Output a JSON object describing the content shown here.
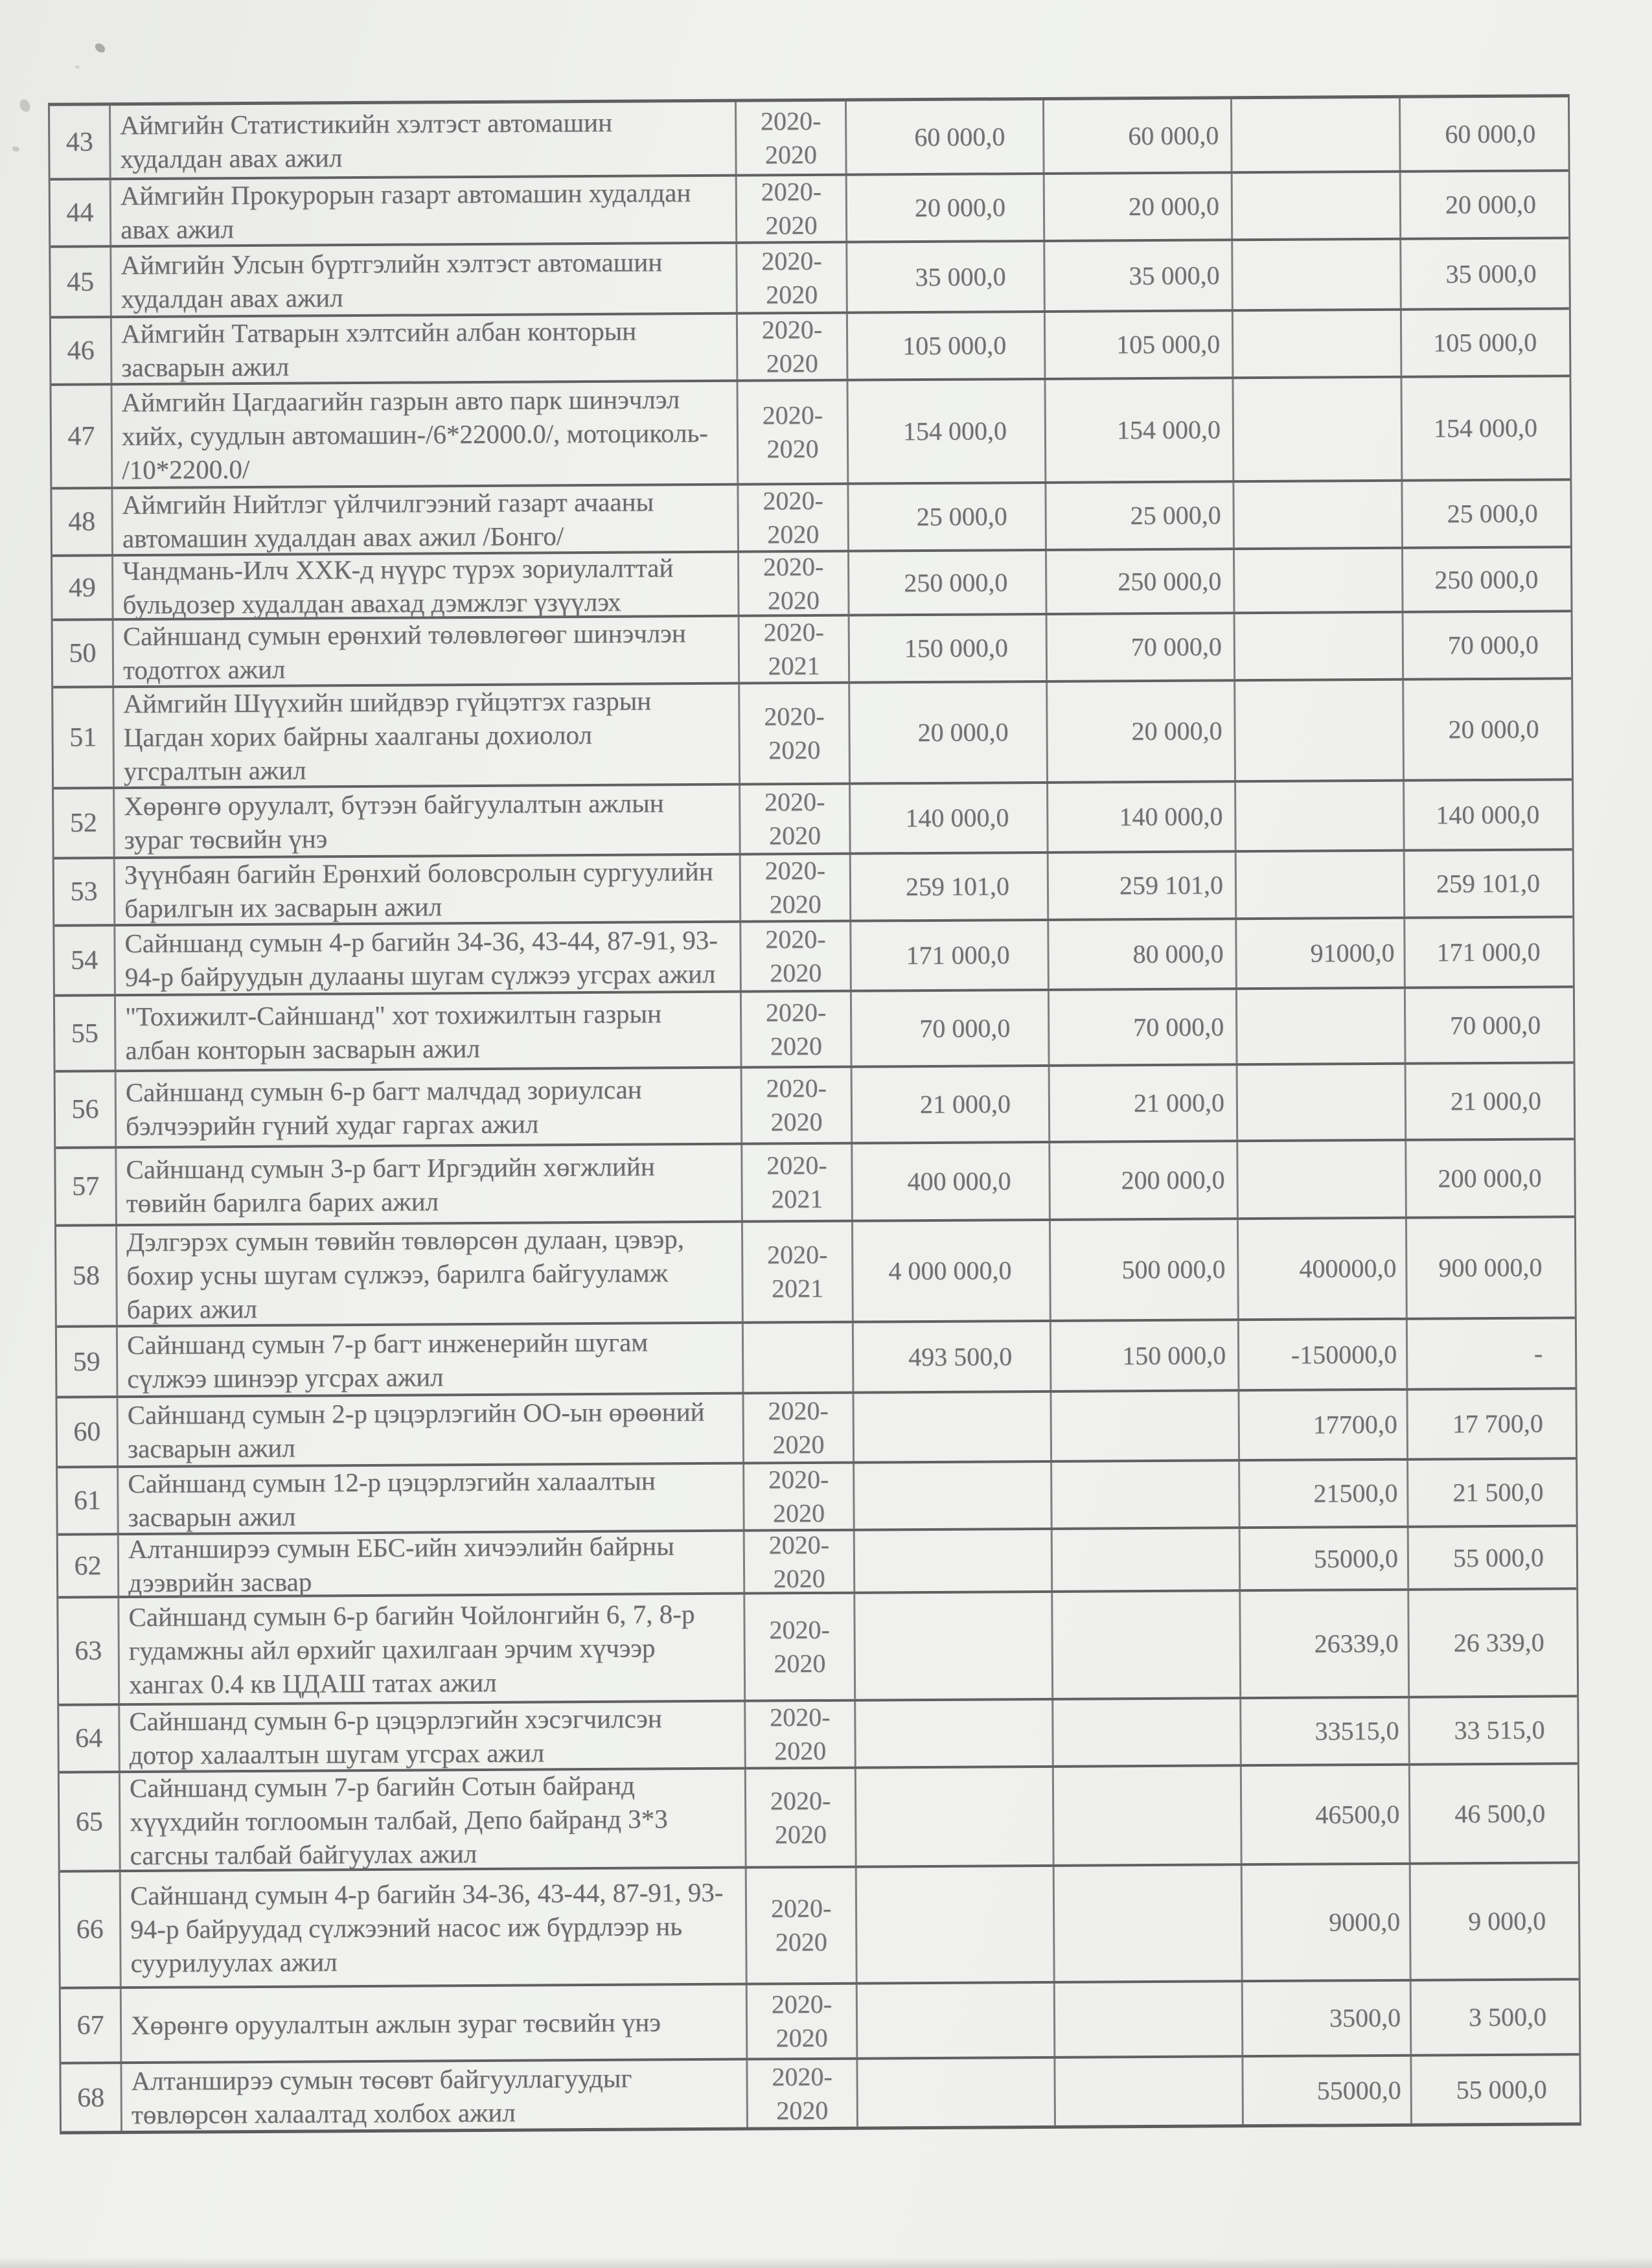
{
  "document": {
    "kind": "scanned budget table page (continuation, rows 43-68)",
    "language": "Mongolian"
  },
  "table": {
    "rows": [
      {
        "num": "43",
        "desc": "Аймгийн Статистикийн хэлтэст автомашин\nхудалдан авах ажил",
        "year": "2020-2020",
        "v1": "60 000,0",
        "v2": "60 000,0",
        "v3": "",
        "v4": "60 000,0"
      },
      {
        "num": "44",
        "desc": "Аймгийн Прокурорын газарт автомашин худалдан\nавах ажил",
        "year": "2020-2020",
        "v1": "20 000,0",
        "v2": "20 000,0",
        "v3": "",
        "v4": "20 000,0"
      },
      {
        "num": "45",
        "desc": "Аймгийн Улсын бүртгэлийн хэлтэст автомашин\nхудалдан авах ажил",
        "year": "2020-2020",
        "v1": "35 000,0",
        "v2": "35 000,0",
        "v3": "",
        "v4": "35 000,0"
      },
      {
        "num": "46",
        "desc": "Аймгийн Татварын хэлтсийн албан конторын\nзасварын ажил",
        "year": "2020-2020",
        "v1": "105 000,0",
        "v2": "105 000,0",
        "v3": "",
        "v4": "105 000,0"
      },
      {
        "num": "47",
        "desc": "Аймгийн Цагдаагийн газрын авто парк шинэчлэл\nхийх, суудлын автомашин-/6*22000.0/, мотоциколь-\n/10*2200.0/",
        "year": "2020-2020",
        "v1": "154 000,0",
        "v2": "154 000,0",
        "v3": "",
        "v4": "154 000,0"
      },
      {
        "num": "48",
        "desc": "Аймгийн Нийтлэг үйлчилгээний газарт ачааны\nавтомашин худалдан авах ажил /Бонго/",
        "year": "2020-2020",
        "v1": "25 000,0",
        "v2": "25 000,0",
        "v3": "",
        "v4": "25 000,0"
      },
      {
        "num": "49",
        "desc": "Чандмань-Илч ХХК-д нүүрс түрэх зориулалттай\nбульдозер худалдан авахад дэмжлэг үзүүлэх",
        "year": "2020-2020",
        "v1": "250 000,0",
        "v2": "250 000,0",
        "v3": "",
        "v4": "250 000,0"
      },
      {
        "num": "50",
        "desc": "Сайншанд сумын ерөнхий төлөвлөгөөг шинэчлэн\nтодотгох ажил",
        "year": "2020-2021",
        "v1": "150 000,0",
        "v2": "70 000,0",
        "v3": "",
        "v4": "70 000,0"
      },
      {
        "num": "51",
        "desc": "Аймгийн Шүүхийн шийдвэр гүйцэтгэх газрын\nЦагдан хорих байрны хаалганы дохиолол\nугсралтын ажил",
        "year": "2020-2020",
        "v1": "20 000,0",
        "v2": "20 000,0",
        "v3": "",
        "v4": "20 000,0"
      },
      {
        "num": "52",
        "desc": "Хөрөнгө оруулалт, бүтээн байгуулалтын ажлын\nзураг төсвийн үнэ",
        "year": "2020-2020",
        "v1": "140 000,0",
        "v2": "140 000,0",
        "v3": "",
        "v4": "140 000,0"
      },
      {
        "num": "53",
        "desc": "Зүүнбаян багийн Ерөнхий боловсролын сургуулийн\nбарилгын их засварын ажил",
        "year": "2020-2020",
        "v1": "259 101,0",
        "v2": "259 101,0",
        "v3": "",
        "v4": "259 101,0"
      },
      {
        "num": "54",
        "desc": "Сайншанд сумын 4-р багийн 34-36, 43-44, 87-91, 93-\n94-р байруудын дулааны шугам сүлжээ угсрах ажил",
        "year": "2020-2020",
        "v1": "171 000,0",
        "v2": "80 000,0",
        "v3": "91000,0",
        "v4": "171 000,0"
      },
      {
        "num": "55",
        "desc": "\"Тохижилт-Сайншанд\" хот тохижилтын газрын\nалбан конторын засварын ажил",
        "year": "2020-2020",
        "v1": "70 000,0",
        "v2": "70 000,0",
        "v3": "",
        "v4": "70 000,0"
      },
      {
        "num": "56",
        "desc": "Сайншанд сумын 6-р багт малчдад зориулсан\nбэлчээрийн гүний худаг гаргах ажил",
        "year": "2020-2020",
        "v1": "21 000,0",
        "v2": "21 000,0",
        "v3": "",
        "v4": "21 000,0"
      },
      {
        "num": "57",
        "desc": "Сайншанд сумын 3-р багт Иргэдийн хөгжлийн\nтөвийн барилга барих ажил",
        "year": "2020-2021",
        "v1": "400 000,0",
        "v2": "200 000,0",
        "v3": "",
        "v4": "200 000,0"
      },
      {
        "num": "58",
        "desc": "Дэлгэрэх сумын төвийн төвлөрсөн дулаан, цэвэр,\nбохир усны шугам сүлжээ, барилга байгууламж\nбарих ажил",
        "year": "2020-2021",
        "v1": "4 000 000,0",
        "v2": "500 000,0",
        "v3": "400000,0",
        "v4": "900 000,0"
      },
      {
        "num": "59",
        "desc": "Сайншанд сумын 7-р багт инженерийн шугам\nсүлжээ шинээр угсрах ажил",
        "year": "",
        "v1": "493 500,0",
        "v2": "150 000,0",
        "v3": "-150000,0",
        "v4": "-"
      },
      {
        "num": "60",
        "desc": "Сайншанд сумын 2-р цэцэрлэгийн ОО-ын өрөөний\nзасварын ажил",
        "year": "2020-2020",
        "v1": "",
        "v2": "",
        "v3": "17700,0",
        "v4": "17 700,0"
      },
      {
        "num": "61",
        "desc": "Сайншанд сумын 12-р цэцэрлэгийн халаалтын\nзасварын ажил",
        "year": "2020-2020",
        "v1": "",
        "v2": "",
        "v3": "21500,0",
        "v4": "21 500,0"
      },
      {
        "num": "62",
        "desc": "Алтанширээ сумын ЕБС-ийн хичээлийн байрны\nдээврийн засвар",
        "year": "2020-2020",
        "v1": "",
        "v2": "",
        "v3": "55000,0",
        "v4": "55 000,0"
      },
      {
        "num": "63",
        "desc": "Сайншанд сумын 6-р багийн Чойлонгийн 6, 7, 8-р\nгудамжны айл өрхийг цахилгаан эрчим хүчээр\nхангах 0.4 кв ЦДАШ татах ажил",
        "year": "2020-2020",
        "v1": "",
        "v2": "",
        "v3": "26339,0",
        "v4": "26 339,0"
      },
      {
        "num": "64",
        "desc": "Сайншанд сумын 6-р цэцэрлэгийн хэсэгчилсэн\nдотор халаалтын шугам угсрах ажил",
        "year": "2020-2020",
        "v1": "",
        "v2": "",
        "v3": "33515,0",
        "v4": "33 515,0"
      },
      {
        "num": "65",
        "desc": "Сайншанд сумын 7-р багийн Сотын байранд\nхүүхдийн тоглоомын талбай, Депо байранд 3*3\nсагсны талбай байгуулах ажил",
        "year": "2020-2020",
        "v1": "",
        "v2": "",
        "v3": "46500,0",
        "v4": "46 500,0"
      },
      {
        "num": "66",
        "desc": "Сайншанд сумын 4-р багийн 34-36, 43-44, 87-91, 93-\n94-р байруудад сүлжээний насос иж бүрдлээр нь\nсуурилуулах ажил",
        "year": "2020-2020",
        "v1": "",
        "v2": "",
        "v3": "9000,0",
        "v4": "9 000,0"
      },
      {
        "num": "67",
        "desc": "Хөрөнгө оруулалтын ажлын зураг төсвийн үнэ",
        "year": "2020-2020",
        "v1": "",
        "v2": "",
        "v3": "3500,0",
        "v4": "3 500,0"
      },
      {
        "num": "68",
        "desc": "Алтанширээ сумын төсөвт байгууллагуудыг\nтөвлөрсөн халаалтад холбох ажил",
        "year": "2020-2020",
        "v1": "",
        "v2": "",
        "v3": "55000,0",
        "v4": "55 000,0"
      }
    ]
  }
}
